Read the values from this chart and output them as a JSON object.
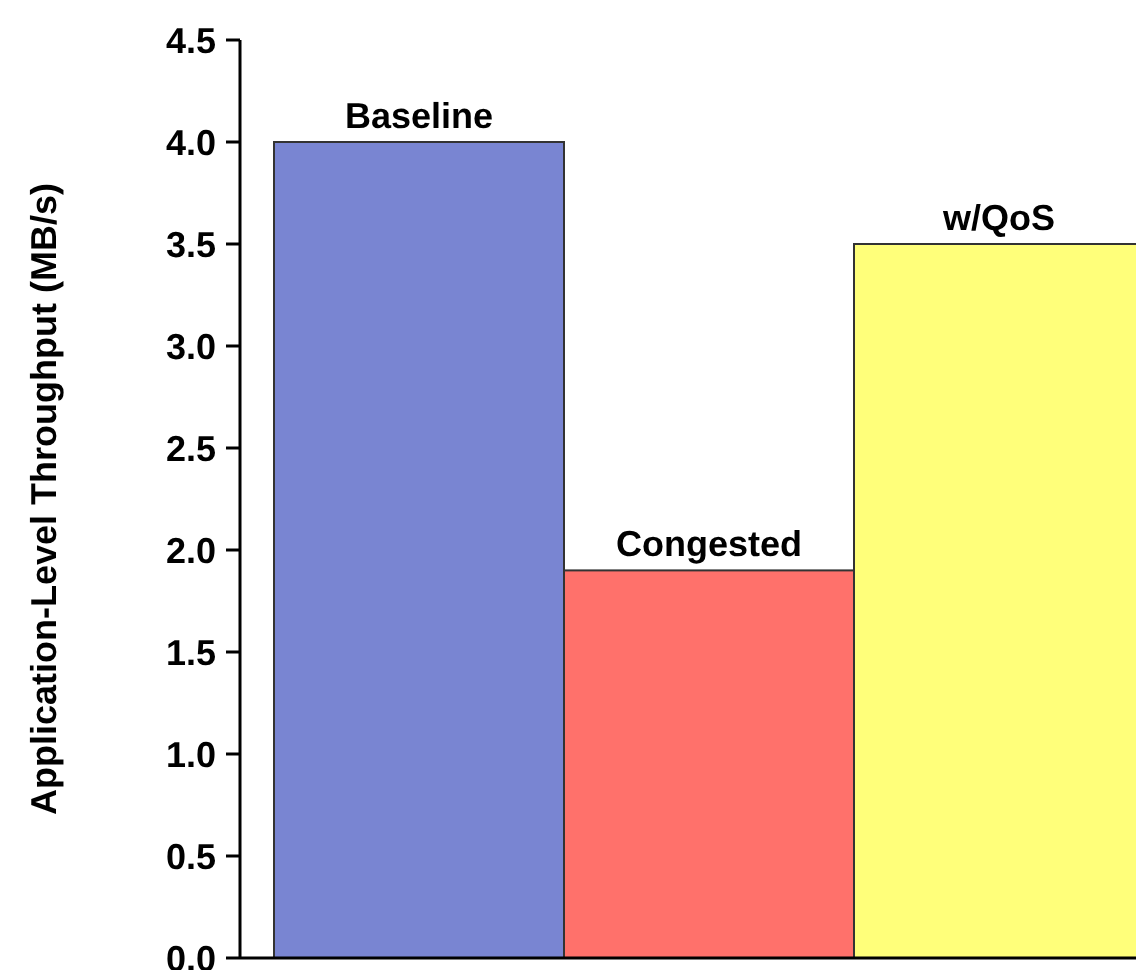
{
  "chart_data": {
    "type": "bar",
    "ylabel": "Application-Level Throughput (MB/s)",
    "categories": [
      "Baseline",
      "Congested",
      "w/QoS"
    ],
    "values": [
      4.0,
      1.9,
      3.5
    ],
    "colors": [
      "#7985d2",
      "#ff716b",
      "#ffff7a"
    ],
    "ylim": [
      0,
      4.5
    ],
    "yticks": [
      {
        "value": 0,
        "label": "0.0"
      },
      {
        "value": 0.5,
        "label": "0.5"
      },
      {
        "value": 1,
        "label": "1.0"
      },
      {
        "value": 1.5,
        "label": "1.5"
      },
      {
        "value": 2,
        "label": "2.0"
      },
      {
        "value": 2.5,
        "label": "2.5"
      },
      {
        "value": 3,
        "label": "3.0"
      },
      {
        "value": 3.5,
        "label": "3.5"
      },
      {
        "value": 4,
        "label": "4.0"
      },
      {
        "value": 4.5,
        "label": "4.5"
      }
    ],
    "grid": false
  }
}
